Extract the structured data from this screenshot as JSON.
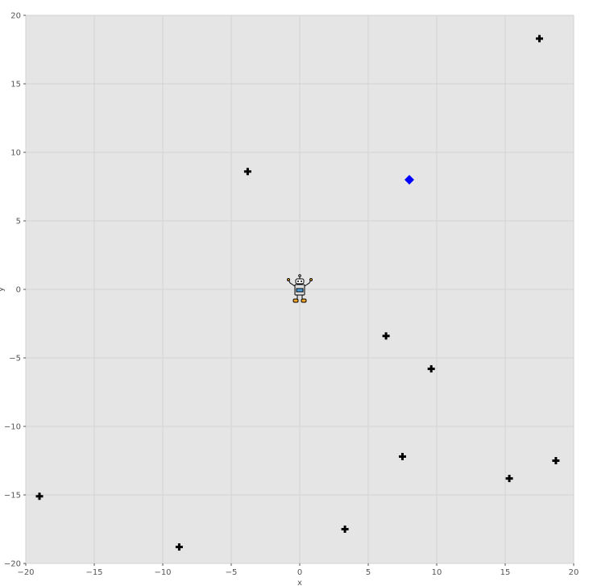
{
  "chart_data": {
    "type": "scatter",
    "title": "",
    "xlabel": "x",
    "ylabel": "y",
    "xlim": [
      -20,
      20
    ],
    "ylim": [
      -20,
      20
    ],
    "xticks": [
      -20,
      -15,
      -10,
      -5,
      0,
      5,
      10,
      15,
      20
    ],
    "yticks": [
      -20,
      -15,
      -10,
      -5,
      0,
      5,
      10,
      15,
      20
    ],
    "grid": true,
    "background_color": "#e5e5e5",
    "grid_color": "#d3d3d3",
    "series": [
      {
        "marker": "plus",
        "color": "#000000",
        "points": [
          [
            17.5,
            18.3
          ],
          [
            -3.8,
            8.6
          ],
          [
            6.3,
            -3.4
          ],
          [
            9.6,
            -5.8
          ],
          [
            7.5,
            -12.2
          ],
          [
            18.7,
            -12.5
          ],
          [
            15.3,
            -13.8
          ],
          [
            -19.0,
            -15.1
          ],
          [
            3.3,
            -17.5
          ],
          [
            -8.8,
            -18.8
          ]
        ]
      },
      {
        "marker": "diamond",
        "color": "#0000ff",
        "points": [
          [
            8.0,
            8.0
          ]
        ]
      },
      {
        "marker": "robot-icon",
        "color": "#f5a623",
        "points": [
          [
            0,
            0
          ]
        ]
      }
    ]
  }
}
